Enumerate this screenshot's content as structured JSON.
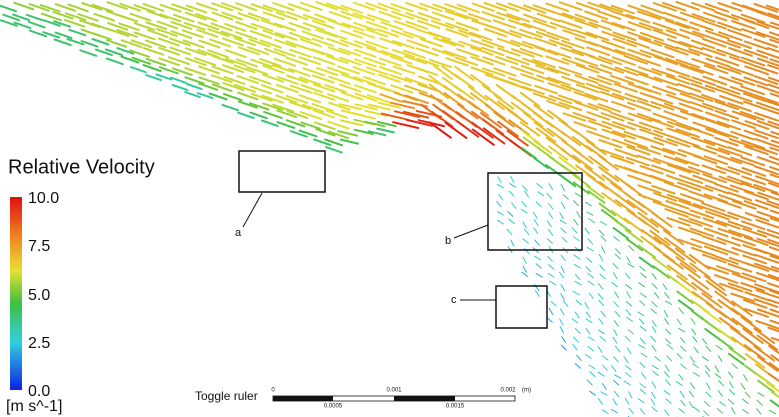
{
  "legend": {
    "title": "Relative Velocity",
    "ticks": [
      "10.0",
      "7.5",
      "5.0",
      "2.5",
      "0.0"
    ],
    "unit": "[m s^-1]"
  },
  "labels": [
    "a",
    "b",
    "c"
  ],
  "ruler": {
    "title": "Toggle ruler",
    "top_labels": [
      "0",
      "0.001",
      "0.002",
      "(m)"
    ],
    "bottom_labels": [
      "0.0005",
      "0.0015"
    ]
  }
}
